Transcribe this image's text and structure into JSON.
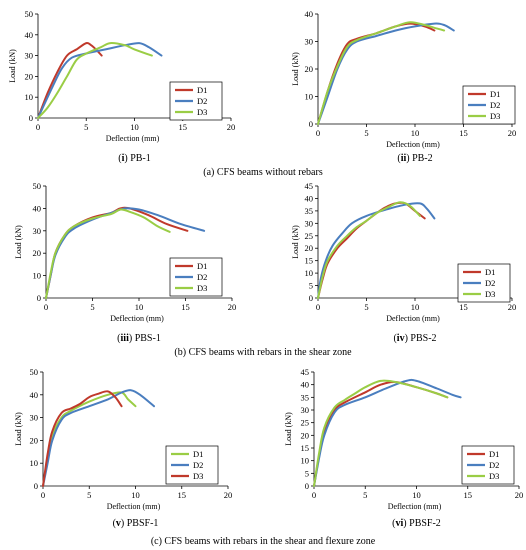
{
  "colors": {
    "D1": "#c0392b",
    "D2": "#4a7ebf",
    "D3": "#9acd45"
  },
  "sections": [
    "(a) CFS beams without rebars",
    "(b) CFS beams with rebars in the shear zone",
    "(c) CFS beams with rebars in the shear and flexure zone"
  ],
  "chart_data": [
    {
      "type": "line",
      "caption": "(i) PB-1",
      "xlabel": "Deflection (mm)",
      "ylabel": "Load (kN)",
      "xlim": [
        0,
        20
      ],
      "ylim": [
        0,
        50
      ],
      "xticks": [
        0,
        5,
        10,
        15,
        20
      ],
      "yticks": [
        0,
        10,
        20,
        30,
        40,
        50
      ],
      "legend_position": "bottom-right",
      "series": [
        {
          "name": "D1",
          "color": "#c0392b",
          "points": [
            [
              0,
              0
            ],
            [
              1,
              12
            ],
            [
              2,
              22
            ],
            [
              3,
              30
            ],
            [
              4,
              33
            ],
            [
              5,
              36
            ],
            [
              5.5,
              35
            ],
            [
              6,
              33
            ],
            [
              6.6,
              30
            ]
          ]
        },
        {
          "name": "D2",
          "color": "#4a7ebf",
          "points": [
            [
              0,
              0
            ],
            [
              1.5,
              15
            ],
            [
              2.5,
              24
            ],
            [
              3.5,
              29
            ],
            [
              5,
              31
            ],
            [
              7,
              33
            ],
            [
              9,
              35
            ],
            [
              10.5,
              36
            ],
            [
              11.5,
              34
            ],
            [
              12.8,
              30
            ]
          ]
        },
        {
          "name": "D3",
          "color": "#9acd45",
          "points": [
            [
              0,
              0
            ],
            [
              1,
              5
            ],
            [
              2,
              12
            ],
            [
              3,
              20
            ],
            [
              4,
              28
            ],
            [
              5,
              31
            ],
            [
              6.5,
              34
            ],
            [
              7.5,
              36
            ],
            [
              9,
              35
            ],
            [
              10,
              33
            ],
            [
              11.8,
              30
            ]
          ]
        }
      ]
    },
    {
      "type": "line",
      "caption": "(ii) PB-2",
      "xlabel": "Deflection (mm)",
      "ylabel": "Load (kN)",
      "xlim": [
        0,
        20
      ],
      "ylim": [
        0,
        40
      ],
      "xticks": [
        0,
        5,
        10,
        15,
        20
      ],
      "yticks": [
        0,
        10,
        20,
        30,
        40
      ],
      "legend_position": "bottom-right",
      "series": [
        {
          "name": "D1",
          "color": "#c0392b",
          "points": [
            [
              0,
              0
            ],
            [
              1,
              12
            ],
            [
              2,
              22
            ],
            [
              3,
              29
            ],
            [
              4,
              31
            ],
            [
              6,
              33
            ],
            [
              8,
              35.5
            ],
            [
              9.5,
              36.5
            ],
            [
              11,
              35.5
            ],
            [
              12,
              34
            ]
          ]
        },
        {
          "name": "D2",
          "color": "#4a7ebf",
          "points": [
            [
              0,
              0
            ],
            [
              1,
              10
            ],
            [
              2,
              20
            ],
            [
              3,
              27
            ],
            [
              4,
              30
            ],
            [
              6,
              32
            ],
            [
              8,
              34
            ],
            [
              10,
              35.5
            ],
            [
              12,
              36.5
            ],
            [
              13,
              36
            ],
            [
              14,
              34
            ]
          ]
        },
        {
          "name": "D3",
          "color": "#9acd45",
          "points": [
            [
              0,
              0
            ],
            [
              1,
              12
            ],
            [
              2,
              21
            ],
            [
              3,
              28
            ],
            [
              4,
              30.5
            ],
            [
              6,
              33
            ],
            [
              8,
              35.5
            ],
            [
              9.5,
              37
            ],
            [
              11,
              36
            ],
            [
              12,
              35
            ],
            [
              13,
              34
            ]
          ]
        }
      ]
    },
    {
      "type": "line",
      "caption": "(iii) PBS-1",
      "xlabel": "Deflection (mm)",
      "ylabel": "Load (kN)",
      "xlim": [
        0,
        20
      ],
      "ylim": [
        0,
        50
      ],
      "xticks": [
        0,
        5,
        10,
        15,
        20
      ],
      "yticks": [
        0,
        10,
        20,
        30,
        40,
        50
      ],
      "legend_position": "right",
      "series": [
        {
          "name": "D1",
          "color": "#c0392b",
          "points": [
            [
              0,
              0
            ],
            [
              0.5,
              10
            ],
            [
              1,
              20
            ],
            [
              2,
              28
            ],
            [
              3,
              32
            ],
            [
              5,
              36
            ],
            [
              7,
              38
            ],
            [
              8,
              40
            ],
            [
              9,
              40
            ],
            [
              11,
              37
            ],
            [
              13,
              33
            ],
            [
              15.2,
              30
            ]
          ]
        },
        {
          "name": "D2",
          "color": "#4a7ebf",
          "points": [
            [
              0,
              0
            ],
            [
              0.5,
              10
            ],
            [
              1,
              19
            ],
            [
              2,
              27
            ],
            [
              3,
              31
            ],
            [
              5,
              35
            ],
            [
              7,
              38
            ],
            [
              8.5,
              40
            ],
            [
              10,
              39.5
            ],
            [
              12,
              37
            ],
            [
              14.5,
              33
            ],
            [
              17,
              30
            ]
          ]
        },
        {
          "name": "D3",
          "color": "#9acd45",
          "points": [
            [
              0,
              0
            ],
            [
              0.5,
              11
            ],
            [
              1,
              20
            ],
            [
              2,
              28
            ],
            [
              3,
              32
            ],
            [
              5,
              35.5
            ],
            [
              7,
              37.5
            ],
            [
              8,
              39.5
            ],
            [
              9,
              38.5
            ],
            [
              10.5,
              36
            ],
            [
              12,
              32
            ],
            [
              13.3,
              29.5
            ]
          ]
        }
      ]
    },
    {
      "type": "line",
      "caption": "(iv) PBS-2",
      "xlabel": "Deflection (mm)",
      "ylabel": "Load (kN)",
      "xlim": [
        0,
        20
      ],
      "ylim": [
        0,
        45
      ],
      "xticks": [
        0,
        5,
        10,
        15,
        20
      ],
      "yticks": [
        0,
        5,
        10,
        15,
        20,
        25,
        30,
        35,
        40,
        45
      ],
      "legend_position": "bottom-right",
      "series": [
        {
          "name": "D1",
          "color": "#c0392b",
          "points": [
            [
              0,
              0
            ],
            [
              0.5,
              8
            ],
            [
              1,
              14
            ],
            [
              2,
              20
            ],
            [
              3,
              24
            ],
            [
              4,
              28
            ],
            [
              5,
              31
            ],
            [
              6,
              34
            ],
            [
              7,
              36.5
            ],
            [
              8,
              38
            ],
            [
              9,
              38
            ],
            [
              10,
              35
            ],
            [
              11,
              32
            ]
          ]
        },
        {
          "name": "D2",
          "color": "#4a7ebf",
          "points": [
            [
              0,
              0
            ],
            [
              0.3,
              8
            ],
            [
              0.8,
              15
            ],
            [
              1.5,
              21
            ],
            [
              2.5,
              26
            ],
            [
              3.5,
              30
            ],
            [
              5,
              33
            ],
            [
              7,
              35.5
            ],
            [
              9,
              37.5
            ],
            [
              10.5,
              38
            ],
            [
              11.2,
              36
            ],
            [
              12,
              32
            ]
          ]
        },
        {
          "name": "D3",
          "color": "#9acd45",
          "points": [
            [
              0,
              0
            ],
            [
              0.5,
              9
            ],
            [
              1,
              15
            ],
            [
              2,
              21
            ],
            [
              3,
              25
            ],
            [
              4,
              28.5
            ],
            [
              5,
              31
            ],
            [
              6,
              34
            ],
            [
              7.5,
              37
            ],
            [
              8.5,
              38.5
            ],
            [
              9.5,
              37
            ],
            [
              10.5,
              33
            ]
          ]
        }
      ]
    },
    {
      "type": "line",
      "caption": "(v) PBSF-1",
      "xlabel": "Deflection (mm)",
      "ylabel": "Load (kN)",
      "xlim": [
        0,
        20
      ],
      "ylim": [
        0,
        50
      ],
      "xticks": [
        0,
        5,
        10,
        15,
        20
      ],
      "yticks": [
        0,
        10,
        20,
        30,
        40,
        50
      ],
      "legend_position": "bottom-right",
      "series": [
        {
          "name": "D1",
          "color": "#9acd45",
          "points": [
            [
              0,
              0
            ],
            [
              0.5,
              12
            ],
            [
              1,
              22
            ],
            [
              2,
              30
            ],
            [
              3,
              33
            ],
            [
              5,
              37
            ],
            [
              7,
              40
            ],
            [
              8.5,
              41
            ],
            [
              9.2,
              38
            ],
            [
              10,
              35
            ]
          ]
        },
        {
          "name": "D2",
          "color": "#4a7ebf",
          "points": [
            [
              0,
              0
            ],
            [
              0.5,
              10
            ],
            [
              1,
              20
            ],
            [
              2,
              29
            ],
            [
              3,
              32
            ],
            [
              5,
              35
            ],
            [
              7,
              38
            ],
            [
              8.5,
              41
            ],
            [
              9.5,
              42
            ],
            [
              10.5,
              40
            ],
            [
              12,
              35
            ]
          ]
        },
        {
          "name": "D3",
          "color": "#c0392b",
          "points": [
            [
              0,
              0
            ],
            [
              0.5,
              14
            ],
            [
              1,
              24
            ],
            [
              2,
              32
            ],
            [
              3,
              34
            ],
            [
              4,
              36
            ],
            [
              5,
              39
            ],
            [
              6,
              40.5
            ],
            [
              7,
              41.5
            ],
            [
              7.8,
              39
            ],
            [
              8.5,
              35
            ]
          ]
        }
      ]
    },
    {
      "type": "line",
      "caption": "(vi) PBSF-2",
      "xlabel": "Deflection (mm)",
      "ylabel": "Load (kN)",
      "xlim": [
        0,
        20
      ],
      "ylim": [
        0,
        45
      ],
      "xticks": [
        0,
        5,
        10,
        15,
        20
      ],
      "yticks": [
        0,
        5,
        10,
        15,
        20,
        25,
        30,
        35,
        40,
        45
      ],
      "legend_position": "bottom-right",
      "series": [
        {
          "name": "D1",
          "color": "#c0392b",
          "points": [
            [
              0,
              0
            ],
            [
              0.5,
              12
            ],
            [
              1,
              22
            ],
            [
              2,
              30
            ],
            [
              3,
              33
            ],
            [
              5,
              37
            ],
            [
              6.5,
              40
            ],
            [
              8,
              41
            ],
            [
              10,
              39
            ],
            [
              12,
              36.5
            ],
            [
              13,
              35
            ]
          ]
        },
        {
          "name": "D2",
          "color": "#4a7ebf",
          "points": [
            [
              0,
              0
            ],
            [
              0.5,
              11
            ],
            [
              1,
              20
            ],
            [
              2,
              29
            ],
            [
              3,
              32
            ],
            [
              5,
              35
            ],
            [
              7,
              38.5
            ],
            [
              9,
              41.5
            ],
            [
              10,
              41.5
            ],
            [
              12,
              38.5
            ],
            [
              13.5,
              36
            ],
            [
              14.3,
              35
            ]
          ]
        },
        {
          "name": "D3",
          "color": "#9acd45",
          "points": [
            [
              0,
              0
            ],
            [
              0.5,
              13
            ],
            [
              1,
              23
            ],
            [
              2,
              31
            ],
            [
              3,
              34
            ],
            [
              4,
              36.5
            ],
            [
              5,
              39
            ],
            [
              6.5,
              41.5
            ],
            [
              8,
              41
            ],
            [
              10,
              39
            ],
            [
              12,
              36.5
            ],
            [
              13,
              35
            ]
          ]
        }
      ]
    }
  ]
}
